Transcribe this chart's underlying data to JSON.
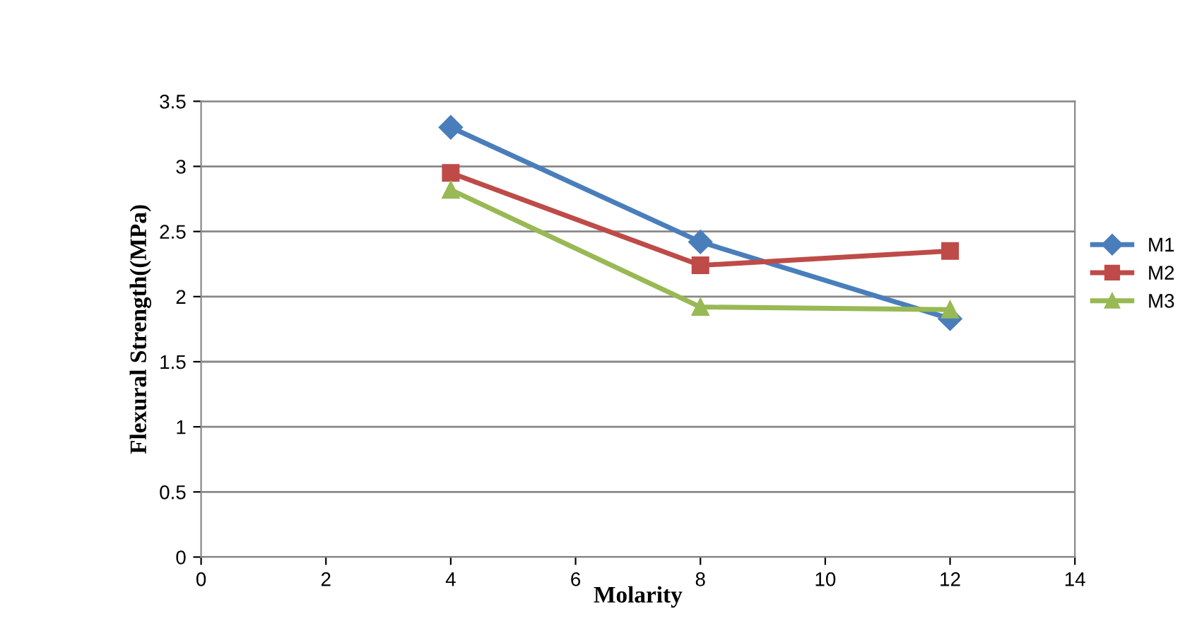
{
  "chart_data": {
    "type": "line",
    "xlabel": "Molarity",
    "ylabel": "Flexural Strength((MPa)",
    "x": [
      4,
      8,
      12
    ],
    "series": [
      {
        "name": "M1",
        "color": "#4a7ebb",
        "marker": "diamond",
        "values": [
          3.3,
          2.42,
          1.83
        ]
      },
      {
        "name": "M2",
        "color": "#be4b48",
        "marker": "square",
        "values": [
          2.95,
          2.24,
          2.35
        ]
      },
      {
        "name": "M3",
        "color": "#98b954",
        "marker": "triangle",
        "values": [
          2.82,
          1.92,
          1.9
        ]
      }
    ],
    "xlim": [
      0,
      14
    ],
    "xticks": [
      0,
      2,
      4,
      6,
      8,
      10,
      12,
      14
    ],
    "ylim": [
      0,
      3.5
    ],
    "yticks": [
      0,
      0.5,
      1,
      1.5,
      2,
      2.5,
      3,
      3.5
    ],
    "grid": "y",
    "legend": "right"
  }
}
